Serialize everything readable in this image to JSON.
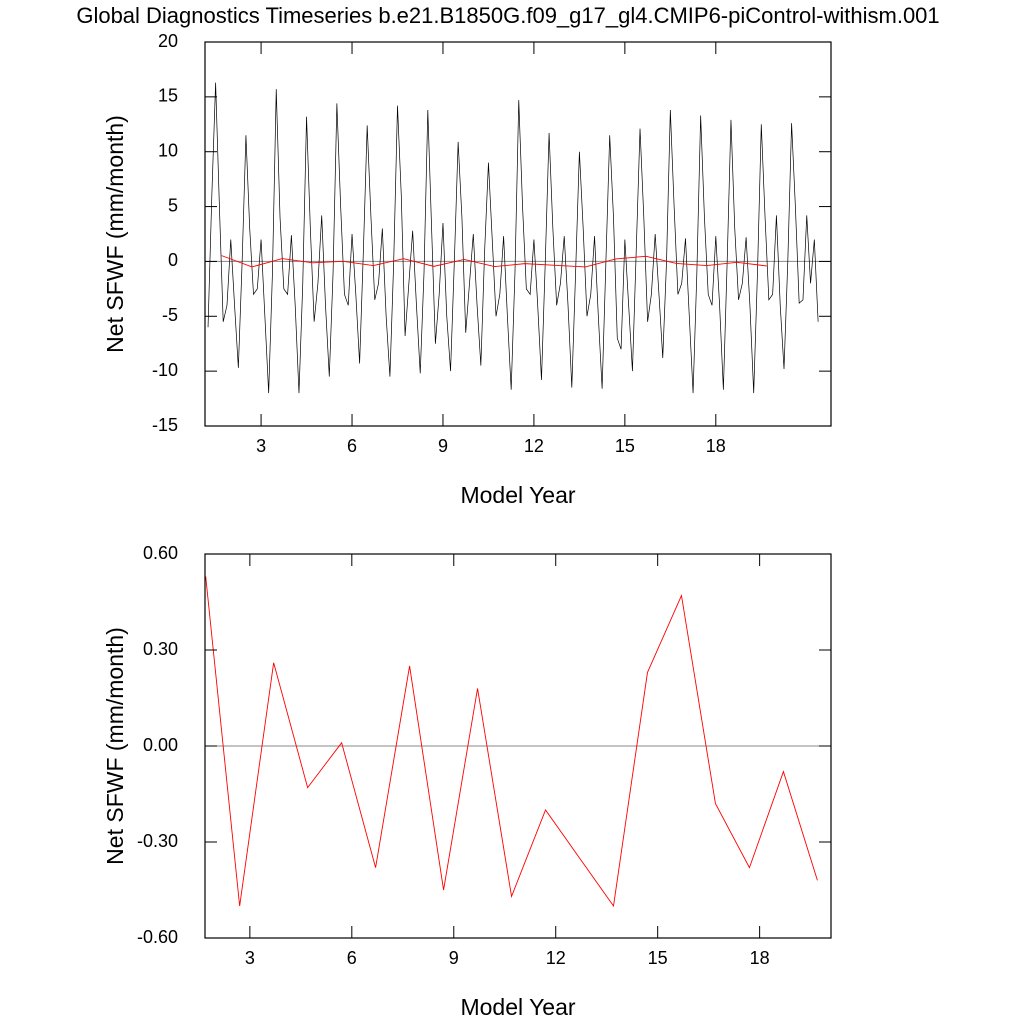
{
  "chart_data": [
    {
      "type": "line",
      "title": "Global Diagnostics Timeseries b.e21.B1850G.f09_g17_gl4.CMIP6-piControl-withism.001",
      "x_label": "Model Year",
      "y_label": "Net SFWF (mm/month)",
      "xlim": [
        1.15,
        21.8
      ],
      "ylim": [
        -15,
        20
      ],
      "xticks": [
        3,
        6,
        9,
        12,
        15,
        18
      ],
      "yticks": [
        -15,
        -10,
        -5,
        0,
        5,
        10,
        15,
        20
      ],
      "reference_line": 0,
      "series": [
        {
          "color": "#000000",
          "x": [
            1.25,
            1.375,
            1.5,
            1.625,
            1.75,
            1.875,
            2,
            2.125,
            2.25,
            2.375,
            2.5,
            2.625,
            2.75,
            2.875,
            3,
            3.125,
            3.25,
            3.375,
            3.5,
            3.625,
            3.75,
            3.875,
            4,
            4.125,
            4.25,
            4.375,
            4.5,
            4.625,
            4.75,
            4.875,
            5,
            5.125,
            5.25,
            5.375,
            5.5,
            5.625,
            5.75,
            5.875,
            6,
            6.125,
            6.25,
            6.375,
            6.5,
            6.625,
            6.75,
            6.875,
            7,
            7.125,
            7.25,
            7.375,
            7.5,
            7.625,
            7.75,
            7.875,
            8,
            8.125,
            8.25,
            8.375,
            8.5,
            8.625,
            8.75,
            8.875,
            9,
            9.125,
            9.25,
            9.375,
            9.5,
            9.625,
            9.75,
            9.875,
            10,
            10.125,
            10.25,
            10.375,
            10.5,
            10.625,
            10.75,
            10.875,
            11,
            11.125,
            11.25,
            11.375,
            11.5,
            11.625,
            11.75,
            11.875,
            12,
            12.125,
            12.25,
            12.375,
            12.5,
            12.625,
            12.75,
            12.875,
            13,
            13.125,
            13.25,
            13.375,
            13.5,
            13.625,
            13.75,
            13.875,
            14,
            14.125,
            14.25,
            14.375,
            14.5,
            14.625,
            14.75,
            14.875,
            15,
            15.125,
            15.25,
            15.375,
            15.5,
            15.625,
            15.75,
            15.875,
            16,
            16.125,
            16.25,
            16.375,
            16.5,
            16.625,
            16.75,
            16.875,
            17,
            17.125,
            17.25,
            17.375,
            17.5,
            17.625,
            17.75,
            17.875,
            18,
            18.125,
            18.25,
            18.375,
            18.5,
            18.625,
            18.75,
            18.875,
            19,
            19.125,
            19.25,
            19.375,
            19.5,
            19.625,
            19.75,
            19.875,
            20,
            20.125,
            20.25,
            20.375,
            20.5,
            20.625,
            20.75,
            20.875,
            21,
            21.125,
            21.25,
            21.375
          ],
          "values": [
            -6,
            6,
            16.3,
            5,
            -5.5,
            -4,
            2,
            -4,
            -9.7,
            0,
            11.5,
            3,
            -3,
            -2.5,
            2,
            -5,
            -12,
            -1,
            15.7,
            4,
            -2.5,
            -3,
            2.4,
            -4,
            -12,
            -2,
            13.2,
            3,
            -5.5,
            -2,
            4.2,
            -4,
            -10.5,
            -1,
            14.4,
            5,
            -3,
            -4,
            2.5,
            -3,
            -9.3,
            1,
            12.4,
            4,
            -3.5,
            -2,
            3,
            -5,
            -10.5,
            0,
            14.2,
            6,
            -6.8,
            -2,
            2.8,
            -4,
            -10.2,
            -1,
            13.8,
            3,
            -7.5,
            -3,
            3.5,
            -5,
            -10,
            0,
            10.9,
            4,
            -6.5,
            -2,
            2.5,
            -4,
            -9.5,
            1,
            9.0,
            2,
            -5,
            -3,
            2.3,
            -5,
            -11.7,
            -1,
            14.7,
            5,
            -2.5,
            -3,
            2,
            -4,
            -10.8,
            0,
            11.7,
            3,
            -4,
            -2,
            2.3,
            -4,
            -11.5,
            -1,
            10.0,
            3,
            -5,
            -3,
            2.3,
            -5,
            -11.6,
            0,
            11.5,
            4,
            -7,
            -8,
            2,
            -4,
            -10,
            1,
            12.1,
            4,
            -5.5,
            -3,
            2.5,
            -3,
            -8.8,
            0,
            13.8,
            5,
            -3,
            -2,
            2.1,
            -5,
            -12,
            -1,
            13.3,
            4,
            -3,
            -4,
            2.3,
            -4,
            -11.7,
            0,
            12.9,
            3,
            -3.5,
            -2,
            2.2,
            -4,
            -12,
            -1,
            12.5,
            4,
            -3.5,
            -3,
            4.2,
            -4,
            -9.8,
            0,
            12.6,
            5,
            -3.8,
            -3.5,
            4.2,
            -2,
            2,
            -5.5
          ]
        },
        {
          "color": "#ff0000",
          "x": [
            1.7,
            2.7,
            3.7,
            4.7,
            5.7,
            6.7,
            7.7,
            8.7,
            9.7,
            10.7,
            11.7,
            12.7,
            13.7,
            14.7,
            15.7,
            16.7,
            17.7,
            18.7,
            19.7
          ],
          "values": [
            0.53,
            -0.5,
            0.26,
            -0.13,
            0.01,
            -0.38,
            0.25,
            -0.45,
            0.18,
            -0.47,
            -0.2,
            -0.35,
            -0.5,
            0.23,
            0.47,
            -0.18,
            -0.38,
            -0.08,
            -0.42
          ]
        }
      ]
    },
    {
      "type": "line",
      "x_label": "Model Year",
      "y_label": "Net SFWF (mm/month)",
      "xlim": [
        1.68,
        20.1
      ],
      "ylim": [
        -0.6,
        0.6
      ],
      "xticks": [
        3,
        6,
        9,
        12,
        15,
        18
      ],
      "yticks": [
        {
          "value": -0.6,
          "label": "-0.60"
        },
        {
          "value": -0.3,
          "label": "-0.30"
        },
        {
          "value": 0,
          "label": "0.00"
        },
        {
          "value": 0.3,
          "label": "0.30"
        },
        {
          "value": 0.6,
          "label": "0.60"
        }
      ],
      "reference_line": 0,
      "series": [
        {
          "color": "#ff0000",
          "x": [
            1.7,
            2.7,
            3.7,
            4.7,
            5.7,
            6.7,
            7.7,
            8.7,
            9.7,
            10.7,
            11.7,
            12.7,
            13.7,
            14.7,
            15.7,
            16.7,
            17.7,
            18.7,
            19.7
          ],
          "values": [
            0.53,
            -0.5,
            0.26,
            -0.13,
            0.01,
            -0.38,
            0.25,
            -0.45,
            0.18,
            -0.47,
            -0.2,
            -0.35,
            -0.5,
            0.23,
            0.47,
            -0.18,
            -0.38,
            -0.08,
            -0.42
          ]
        }
      ]
    }
  ]
}
